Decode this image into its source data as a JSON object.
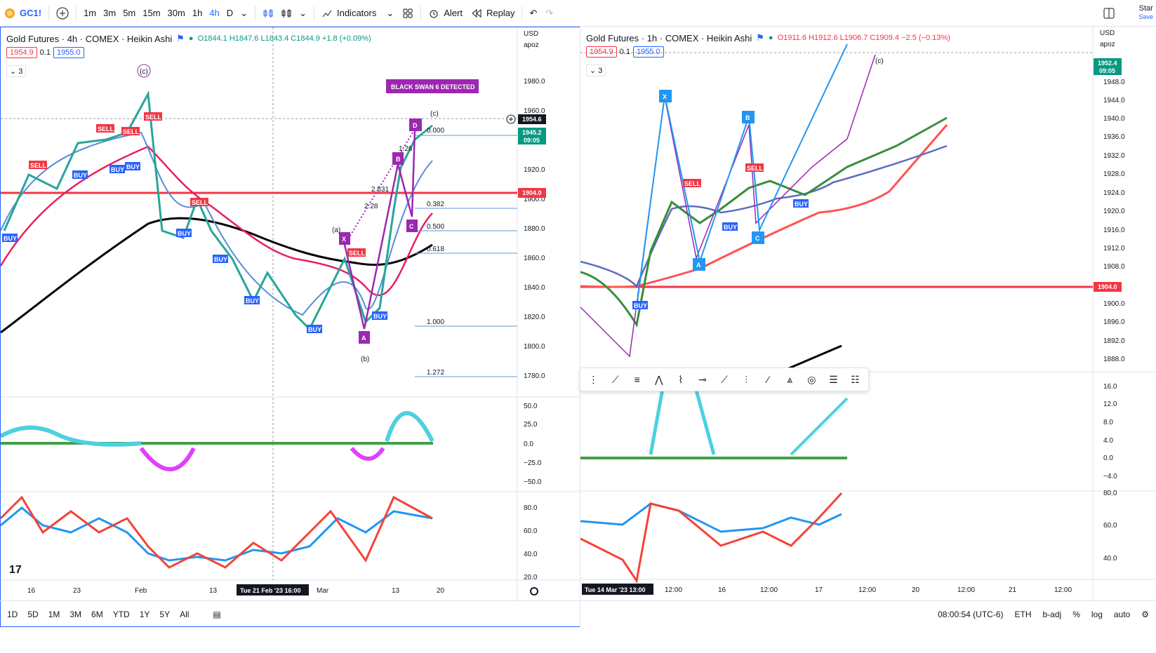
{
  "topbar": {
    "symbol": "GC1!",
    "add_symbol_icon": "plus-circle-icon",
    "timeframes": [
      "1m",
      "3m",
      "5m",
      "15m",
      "30m",
      "1h",
      "4h",
      "D"
    ],
    "active_timeframe": "4h",
    "indicators_label": "Indicators",
    "alert_label": "Alert",
    "replay_label": "Replay",
    "star_label": "Star",
    "save_label": "Save"
  },
  "left_chart": {
    "title": "Gold Futures · 4h · COMEX · Heikin Ashi",
    "ohlc": "O1844.1 H1847.6 L1843.4 C1844.9 +1.8 (+0.09%)",
    "bid": "1954.9",
    "spread": "0.1",
    "ask": "1955.0",
    "indicator_count": "3",
    "currency": "USD",
    "scale_mode": "apoz",
    "price_ticks": [
      "1980.0",
      "1960.0",
      "1920.0",
      "1900.0",
      "1880.0",
      "1860.0",
      "1840.0",
      "1820.0",
      "1800.0",
      "1780.0"
    ],
    "current_price": "1954.6",
    "last_price": "1945.2",
    "countdown": "09:05",
    "hline_price": "1904.0",
    "osc_ticks": [
      "50.0",
      "25.0",
      "0.0",
      "−25.0",
      "−50.0"
    ],
    "rsi_ticks": [
      "80.0",
      "60.0",
      "40.0",
      "20.0"
    ],
    "time_ticks": [
      "16",
      "23",
      "Feb",
      "13",
      "Mar",
      "13",
      "20"
    ],
    "crosshair_time": "Tue 21 Feb '23  16:00",
    "black_swan_label": "BLACK SWAN 6 DETECTED",
    "fib_levels": [
      "0.000",
      "0.382",
      "0.500",
      "0.618",
      "1.000",
      "1.272"
    ],
    "pattern_points": [
      "X",
      "A",
      "B",
      "C",
      "D"
    ],
    "wave_labels": [
      "(c)",
      "(a)",
      "(b)",
      "(c)"
    ],
    "ratio_labels": [
      "1.26",
      "2.531",
      "2.28"
    ]
  },
  "right_chart": {
    "title": "Gold Futures · 1h · COMEX · Heikin Ashi",
    "ohlc": "O1911.6 H1912.6 L1906.7 C1909.4 −2.5 (−0.13%)",
    "bid": "1954.9",
    "spread": "0.1",
    "ask": "1955.0",
    "indicator_count": "3",
    "currency": "USD",
    "scale_mode": "apoz",
    "price_ticks": [
      "1948.0",
      "1944.0",
      "1940.0",
      "1936.0",
      "1932.0",
      "1928.0",
      "1924.0",
      "1920.0",
      "1916.0",
      "1912.0",
      "1908.0",
      "1904.0",
      "1900.0",
      "1896.0",
      "1892.0",
      "1888.0"
    ],
    "current_price": "1952.4",
    "countdown": "09:05",
    "hline_price": "1904.0",
    "osc_ticks": [
      "16.0",
      "12.0",
      "8.0",
      "4.0",
      "0.0",
      "−4.0"
    ],
    "rsi_ticks": [
      "80.0",
      "60.0",
      "40.0"
    ],
    "time_ticks": [
      "12:00",
      "16",
      "12:00",
      "17",
      "12:00",
      "20",
      "12:00",
      "21",
      "12:00"
    ],
    "crosshair_time": "Tue 14 Mar '23  13:00",
    "pattern_points": [
      "X",
      "A",
      "B",
      "C"
    ],
    "wave_label": "(c)"
  },
  "bottombar": {
    "ranges": [
      "1D",
      "5D",
      "1M",
      "3M",
      "6M",
      "YTD",
      "1Y",
      "5Y",
      "All"
    ],
    "clock": "08:00:54 (UTC-6)",
    "session": "ETH",
    "badj": "b-adj",
    "percent": "%",
    "log": "log",
    "auto": "auto"
  },
  "signals": {
    "buy": "BUY",
    "sell": "SELL"
  },
  "colors": {
    "accent": "#2962ff",
    "hline": "#f23645",
    "buy": "#2962ff",
    "sell": "#f23645",
    "pattern": "#9c27b0"
  }
}
